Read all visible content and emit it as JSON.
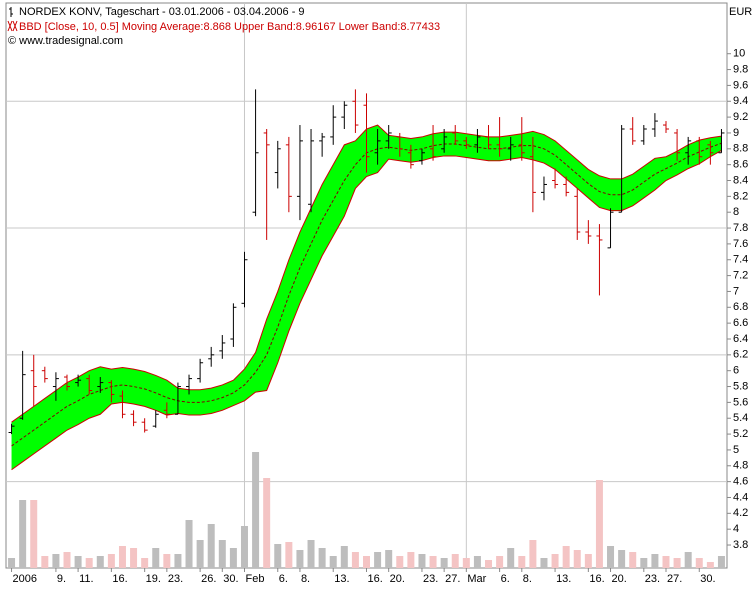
{
  "chart_data": {
    "type": "ohlc",
    "title": "NORDEX KONV, Tageschart - 03.01.2006 - 03.04.2006 - 9",
    "legend": "BBD [Close, 10, 0.5] Moving Average:8.868 Upper Band:8.96167 Lower Band:8.77433",
    "source": "© www.tradesignal.com",
    "y_unit": "EUR",
    "categories": [
      "2006",
      null,
      null,
      null,
      "9.",
      null,
      "11.",
      null,
      null,
      "16.",
      null,
      null,
      "19.",
      null,
      "23.",
      null,
      null,
      "26.",
      null,
      "30.",
      null,
      "Feb",
      null,
      null,
      "6.",
      null,
      "8.",
      null,
      null,
      "13.",
      null,
      null,
      "16.",
      null,
      "20.",
      null,
      null,
      "23.",
      null,
      "27.",
      null,
      "Mar",
      null,
      null,
      "6.",
      null,
      "8.",
      null,
      null,
      "13.",
      null,
      null,
      "16.",
      null,
      "20.",
      null,
      null,
      "23.",
      null,
      "27.",
      null,
      null,
      "30.",
      null,
      null
    ],
    "open": [
      5.22,
      5.4,
      6.0,
      6.0,
      5.8,
      5.92,
      5.85,
      5.9,
      5.8,
      5.85,
      5.68,
      5.45,
      5.35,
      5.3,
      5.5,
      5.45,
      5.8,
      5.9,
      6.15,
      6.25,
      6.4,
      6.85,
      8.0,
      9.0,
      8.5,
      8.85,
      8.2,
      8.1,
      8.9,
      8.95,
      9.2,
      9.4,
      9.35,
      8.75,
      8.9,
      8.95,
      8.75,
      8.65,
      8.8,
      8.8,
      9.0,
      8.9,
      8.85,
      8.95,
      8.85,
      8.8,
      8.85,
      8.7,
      8.25,
      8.4,
      8.35,
      8.2,
      7.75,
      7.7,
      7.55,
      8.0,
      9.05,
      8.9,
      9.05,
      9.1,
      9.0,
      8.75,
      8.9,
      8.85,
      8.75
    ],
    "high": [
      5.33,
      6.25,
      6.2,
      6.05,
      5.98,
      5.95,
      5.95,
      5.95,
      5.92,
      5.88,
      5.75,
      5.5,
      5.4,
      5.5,
      5.6,
      5.85,
      5.95,
      6.15,
      6.3,
      6.45,
      6.85,
      7.5,
      9.55,
      9.05,
      8.9,
      8.95,
      9.1,
      9.05,
      9.0,
      9.35,
      9.4,
      9.55,
      9.5,
      9.05,
      9.1,
      9.0,
      8.85,
      8.8,
      9.1,
      9.05,
      9.1,
      8.95,
      9.05,
      9.1,
      9.2,
      8.95,
      9.2,
      8.95,
      8.45,
      8.55,
      8.45,
      8.3,
      7.9,
      7.85,
      8.05,
      9.1,
      9.2,
      9.1,
      9.25,
      9.15,
      9.05,
      8.95,
      8.95,
      8.9,
      9.05
    ],
    "low": [
      5.2,
      5.38,
      5.55,
      5.85,
      5.62,
      5.75,
      5.8,
      5.7,
      5.72,
      5.6,
      5.4,
      5.3,
      5.22,
      5.28,
      5.4,
      5.45,
      5.7,
      5.85,
      6.05,
      6.15,
      6.3,
      6.8,
      7.95,
      7.65,
      8.3,
      8.0,
      7.9,
      8.0,
      8.7,
      8.85,
      9.05,
      9.0,
      8.5,
      8.6,
      8.8,
      8.7,
      8.55,
      8.6,
      8.65,
      8.75,
      8.85,
      8.8,
      8.75,
      8.8,
      8.7,
      8.65,
      8.65,
      8.0,
      8.15,
      8.3,
      8.2,
      7.65,
      7.6,
      6.95,
      7.55,
      8.0,
      8.85,
      8.85,
      8.95,
      9.0,
      8.65,
      8.6,
      8.6,
      8.6,
      8.75
    ],
    "close": [
      5.3,
      5.95,
      5.8,
      5.9,
      5.9,
      5.8,
      5.88,
      5.75,
      5.85,
      5.7,
      5.45,
      5.35,
      5.25,
      5.45,
      5.45,
      5.8,
      5.9,
      6.1,
      6.2,
      6.35,
      6.8,
      7.4,
      8.75,
      8.85,
      8.8,
      8.2,
      8.9,
      8.9,
      8.95,
      9.2,
      9.35,
      9.1,
      8.7,
      8.9,
      9.0,
      8.8,
      8.6,
      8.75,
      8.7,
      8.95,
      8.9,
      8.85,
      8.95,
      8.85,
      8.8,
      8.85,
      8.75,
      8.25,
      8.35,
      8.35,
      8.25,
      7.75,
      7.7,
      7.65,
      8.0,
      9.05,
      8.9,
      9.05,
      9.15,
      9.05,
      8.75,
      8.9,
      8.7,
      8.75,
      9.0
    ],
    "volume": [
      10,
      68,
      68,
      12,
      14,
      16,
      12,
      10,
      12,
      14,
      22,
      20,
      10,
      20,
      14,
      14,
      48,
      28,
      44,
      28,
      20,
      42,
      116,
      90,
      24,
      26,
      18,
      28,
      20,
      12,
      22,
      16,
      12,
      16,
      18,
      12,
      16,
      14,
      12,
      10,
      14,
      10,
      12,
      8,
      12,
      20,
      12,
      28,
      10,
      14,
      22,
      18,
      14,
      88,
      22,
      18,
      16,
      10,
      14,
      12,
      10,
      16,
      10,
      6,
      12
    ],
    "band": {
      "upper": [
        5.35,
        5.45,
        5.55,
        5.65,
        5.75,
        5.85,
        5.92,
        6.0,
        6.05,
        6.02,
        6.04,
        6.02,
        5.99,
        5.94,
        5.88,
        5.78,
        5.76,
        5.76,
        5.78,
        5.82,
        5.88,
        6.02,
        6.23,
        6.65,
        7.0,
        7.4,
        7.75,
        8.05,
        8.35,
        8.6,
        8.85,
        8.9,
        9.05,
        9.1,
        8.97,
        8.95,
        8.93,
        8.95,
        8.99,
        9.01,
        9.01,
        8.99,
        8.97,
        8.95,
        8.95,
        8.97,
        8.99,
        9.02,
        8.98,
        8.9,
        8.78,
        8.66,
        8.54,
        8.46,
        8.42,
        8.42,
        8.48,
        8.58,
        8.68,
        8.7,
        8.77,
        8.85,
        8.91,
        8.94,
        8.96
      ],
      "middle": [
        5.05,
        5.15,
        5.25,
        5.35,
        5.45,
        5.55,
        5.62,
        5.7,
        5.75,
        5.8,
        5.82,
        5.8,
        5.77,
        5.72,
        5.66,
        5.62,
        5.6,
        5.6,
        5.62,
        5.66,
        5.72,
        5.82,
        5.98,
        6.2,
        6.55,
        6.95,
        7.3,
        7.6,
        7.9,
        8.15,
        8.4,
        8.6,
        8.75,
        8.8,
        8.82,
        8.8,
        8.78,
        8.8,
        8.84,
        8.86,
        8.86,
        8.84,
        8.82,
        8.8,
        8.8,
        8.82,
        8.84,
        8.84,
        8.8,
        8.72,
        8.6,
        8.48,
        8.36,
        8.26,
        8.22,
        8.22,
        8.28,
        8.38,
        8.48,
        8.55,
        8.62,
        8.7,
        8.76,
        8.82,
        8.87
      ],
      "lower": [
        4.75,
        4.85,
        4.95,
        5.05,
        5.15,
        5.25,
        5.32,
        5.4,
        5.45,
        5.58,
        5.6,
        5.58,
        5.55,
        5.5,
        5.44,
        5.46,
        5.44,
        5.44,
        5.46,
        5.5,
        5.56,
        5.62,
        5.73,
        5.75,
        6.1,
        6.5,
        6.85,
        7.15,
        7.45,
        7.7,
        7.95,
        8.3,
        8.45,
        8.5,
        8.67,
        8.65,
        8.63,
        8.65,
        8.69,
        8.71,
        8.71,
        8.69,
        8.67,
        8.65,
        8.65,
        8.67,
        8.69,
        8.66,
        8.62,
        8.54,
        8.42,
        8.3,
        8.18,
        8.06,
        8.02,
        8.02,
        8.08,
        8.18,
        8.28,
        8.4,
        8.47,
        8.55,
        8.61,
        8.7,
        8.78
      ],
      "fill": "#00ff00",
      "line": "#cc0000"
    },
    "up_color": "#000000",
    "down_color": "#cc0000",
    "volume_up_color": "#bdbdbd",
    "volume_down_color": "#f4c4c4",
    "ylim": [
      3.51,
      10.64
    ],
    "yticks": [
      3.8,
      4,
      4.2,
      4.4,
      4.6,
      4.8,
      5,
      5.2,
      5.4,
      5.6,
      5.8,
      6,
      6.2,
      6.4,
      6.6,
      6.8,
      7,
      7.2,
      7.4,
      7.6,
      7.8,
      8,
      8.2,
      8.4,
      8.6,
      8.8,
      9,
      9.2,
      9.4,
      9.6,
      9.8,
      10
    ],
    "grid": true
  }
}
